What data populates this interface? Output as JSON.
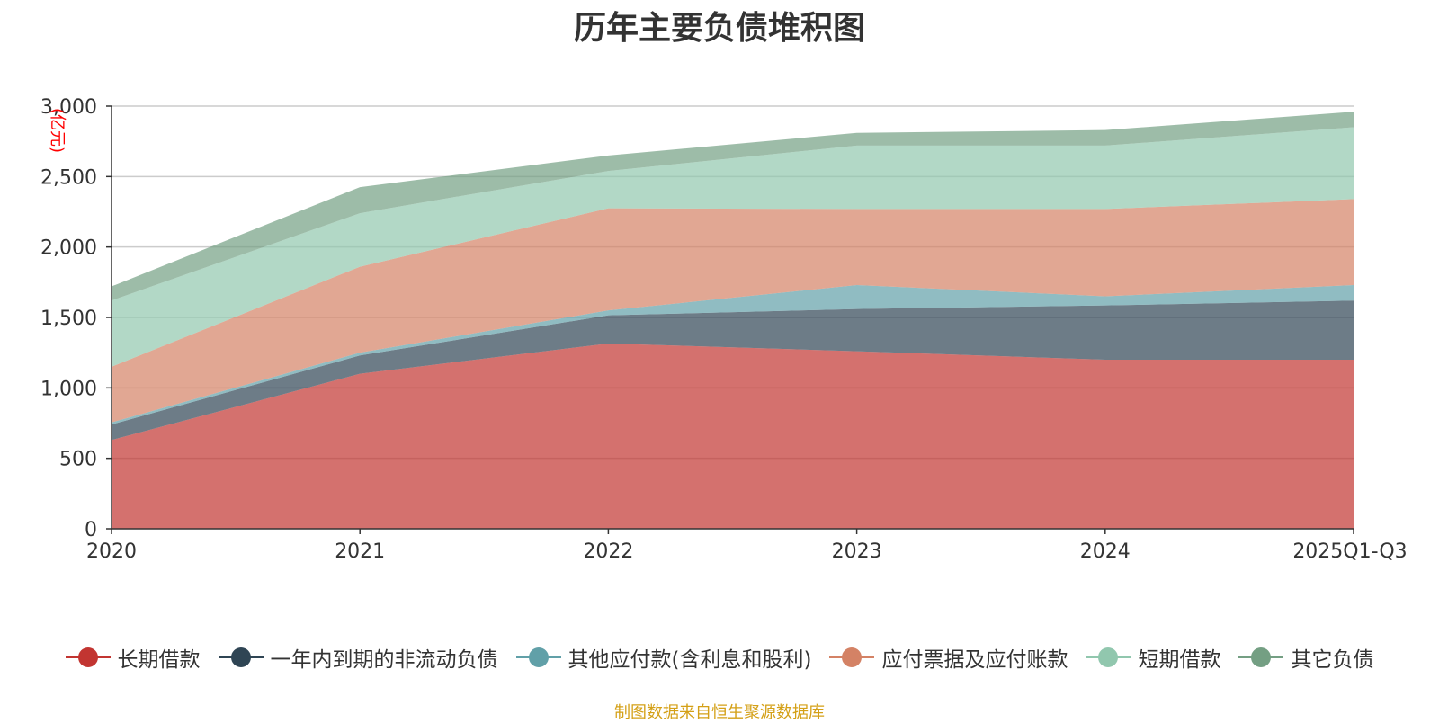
{
  "chart_data": {
    "type": "area",
    "stacked": true,
    "title": "历年主要负债堆积图",
    "ylabel": "亿元",
    "xlabel": "",
    "categories": [
      "2020",
      "2021",
      "2022",
      "2023",
      "2024",
      "2025Q1-Q3"
    ],
    "ylim": [
      0,
      3000
    ],
    "yticks": [
      0,
      500,
      1000,
      1500,
      2000,
      2500,
      3000
    ],
    "ytick_labels": [
      "0",
      "500",
      "1,000",
      "1,500",
      "2,000",
      "2,500",
      "3,000"
    ],
    "grid": true,
    "legend_position": "bottom",
    "series": [
      {
        "name": "长期借款",
        "color": "#c23531",
        "values": [
          630,
          1100,
          1315,
          1260,
          1200,
          1200
        ]
      },
      {
        "name": "一年内到期的非流动负债",
        "color": "#2f4554",
        "values": [
          110,
          130,
          200,
          300,
          385,
          420
        ]
      },
      {
        "name": "其他应付款(含利息和股利)",
        "color": "#61a0a8",
        "values": [
          15,
          20,
          35,
          170,
          65,
          110
        ]
      },
      {
        "name": "应付票据及应付账款",
        "color": "#d48265",
        "values": [
          395,
          610,
          725,
          540,
          620,
          610
        ]
      },
      {
        "name": "短期借款",
        "color": "#91c7ae",
        "values": [
          470,
          380,
          265,
          450,
          450,
          510
        ]
      },
      {
        "name": "其它负债",
        "color": "#749f83",
        "values": [
          100,
          185,
          110,
          90,
          110,
          110
        ]
      }
    ]
  },
  "source_note": "制图数据来自恒生聚源数据库"
}
